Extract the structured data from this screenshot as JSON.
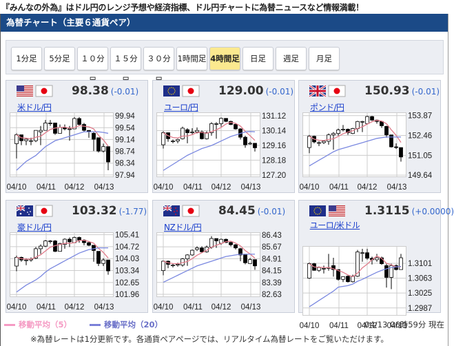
{
  "tagline": "『みんなの外為』はドル円のレンジ予想や経済指標、ドル円チャートに為替ニュースなど情報満載！",
  "header": {
    "title": "為替チャート（主要６通貨ペア）"
  },
  "timeframes": [
    {
      "label": "1分足",
      "active": false
    },
    {
      "label": "5分足",
      "active": false
    },
    {
      "label": "１０分足",
      "active": false
    },
    {
      "label": "１５分足",
      "active": false
    },
    {
      "label": "３０分足",
      "active": false
    },
    {
      "label": "1時間足",
      "active": false
    },
    {
      "label": "4時間足",
      "active": true
    },
    {
      "label": "日足",
      "active": false
    },
    {
      "label": "週足",
      "active": false
    },
    {
      "label": "月足",
      "active": false
    }
  ],
  "colors": {
    "ma5": "#e07b8a",
    "ma20": "#7a88e0",
    "active_button": "#fbe98f",
    "header": "#1b4a87",
    "change": "#3366cc"
  },
  "dates": [
    "04/10",
    "04/11",
    "04/12",
    "04/13"
  ],
  "pairs": [
    {
      "name": "米ドル/円",
      "flags": [
        "us",
        "jp"
      ],
      "price": "98.38",
      "change": "(-0.01)",
      "ylabels": [
        "99.94",
        "99.54",
        "99.14",
        "98.74",
        "98.34",
        "97.94"
      ],
      "ylim": [
        97.89,
        100.06
      ],
      "candles": [
        [
          99.0,
          99.35,
          98.5,
          99.3
        ],
        [
          99.3,
          99.3,
          98.95,
          99.1
        ],
        [
          99.1,
          99.2,
          98.95,
          99.15
        ],
        [
          99.1,
          99.2,
          98.95,
          99.1
        ],
        [
          99.1,
          99.45,
          99.05,
          99.45
        ],
        [
          99.4,
          99.6,
          98.95,
          99.45
        ],
        [
          99.45,
          99.8,
          99.45,
          99.7
        ],
        [
          99.7,
          99.8,
          99.6,
          99.7
        ],
        [
          99.7,
          99.7,
          99.3,
          99.35
        ],
        [
          99.35,
          99.65,
          99.35,
          99.55
        ],
        [
          99.55,
          99.65,
          99.45,
          99.5
        ],
        [
          99.5,
          99.6,
          99.1,
          99.5
        ],
        [
          99.5,
          99.9,
          99.5,
          99.85
        ],
        [
          99.85,
          99.9,
          99.6,
          99.65
        ],
        [
          99.65,
          99.7,
          99.4,
          99.45
        ],
        [
          99.45,
          99.45,
          99.2,
          99.4
        ],
        [
          99.35,
          99.4,
          98.75,
          99.15
        ],
        [
          99.2,
          99.2,
          98.7,
          98.75
        ],
        [
          98.75,
          99.0,
          98.7,
          98.9
        ],
        [
          98.9,
          98.9,
          98.1,
          98.38
        ]
      ],
      "ma20": [
        98.1,
        98.25,
        98.4,
        98.5,
        98.6,
        98.75,
        98.9,
        99.0,
        99.1,
        99.15,
        99.2,
        99.25,
        99.3,
        99.35,
        99.4,
        99.4,
        99.4,
        99.4,
        99.38,
        99.35
      ]
    },
    {
      "name": "ユーロ/円",
      "flags": [
        "eu",
        "jp"
      ],
      "price": "129.00",
      "change": "(-0.01)",
      "ylabels": [
        "131.12",
        "130.14",
        "129.16",
        "128.18",
        "127.20"
      ],
      "ylim": [
        127.1,
        131.35
      ],
      "candles": [
        [
          129.2,
          130.1,
          128.95,
          130.0
        ],
        [
          130.0,
          130.0,
          129.4,
          129.6
        ],
        [
          129.45,
          129.55,
          129.3,
          129.45
        ],
        [
          129.45,
          129.6,
          129.3,
          129.55
        ],
        [
          129.6,
          130.4,
          129.55,
          130.3
        ],
        [
          130.2,
          130.3,
          129.3,
          130.0
        ],
        [
          130.0,
          130.3,
          129.9,
          130.05
        ],
        [
          130.05,
          130.35,
          129.95,
          130.15
        ],
        [
          130.05,
          130.15,
          129.55,
          129.6
        ],
        [
          129.6,
          130.1,
          129.55,
          130.0
        ],
        [
          130.0,
          130.7,
          129.8,
          130.6
        ],
        [
          130.6,
          130.7,
          129.6,
          130.6
        ],
        [
          130.6,
          131.0,
          130.4,
          130.95
        ],
        [
          130.95,
          130.95,
          130.7,
          130.75
        ],
        [
          130.75,
          130.8,
          130.5,
          130.55
        ],
        [
          130.55,
          130.65,
          130.2,
          130.25
        ],
        [
          130.25,
          130.3,
          129.55,
          129.7
        ],
        [
          129.7,
          129.8,
          129.0,
          129.2
        ],
        [
          129.25,
          129.4,
          129.2,
          129.3
        ],
        [
          129.3,
          129.3,
          128.75,
          129.0
        ]
      ],
      "ma20": [
        127.5,
        127.7,
        127.9,
        128.1,
        128.3,
        128.5,
        128.65,
        128.8,
        128.95,
        129.05,
        129.15,
        129.3,
        129.45,
        129.6,
        129.75,
        129.85,
        129.95,
        130.05,
        130.08,
        130.06
      ]
    },
    {
      "name": "ポンド/円",
      "flags": [
        "uk",
        "jp"
      ],
      "price": "150.93",
      "change": "(-0.01)",
      "ylabels": [
        "153.87",
        "152.46",
        "151.05",
        "149.64"
      ],
      "ylim": [
        149.55,
        154.1
      ],
      "candles": [
        [
          151.6,
          152.5,
          151.2,
          152.4
        ],
        [
          152.4,
          152.45,
          151.9,
          152.0
        ],
        [
          151.95,
          152.05,
          151.7,
          151.95
        ],
        [
          151.95,
          152.1,
          151.85,
          152.05
        ],
        [
          152.05,
          152.6,
          151.8,
          152.5
        ],
        [
          152.5,
          152.7,
          151.45,
          152.6
        ],
        [
          152.6,
          152.95,
          152.45,
          152.85
        ],
        [
          152.85,
          153.2,
          152.75,
          152.9
        ],
        [
          152.9,
          152.95,
          152.5,
          152.65
        ],
        [
          152.6,
          153.0,
          152.55,
          152.95
        ],
        [
          152.95,
          153.5,
          152.7,
          153.45
        ],
        [
          153.45,
          153.5,
          152.7,
          153.45
        ],
        [
          153.3,
          153.87,
          153.3,
          153.8
        ],
        [
          153.8,
          153.85,
          153.5,
          153.55
        ],
        [
          153.55,
          153.6,
          153.3,
          153.45
        ],
        [
          153.45,
          153.5,
          153.0,
          153.15
        ],
        [
          153.1,
          153.15,
          152.3,
          152.5
        ],
        [
          152.5,
          152.5,
          151.6,
          151.65
        ],
        [
          151.65,
          151.9,
          151.5,
          151.6
        ],
        [
          151.6,
          151.6,
          150.6,
          150.93
        ]
      ],
      "ma20": [
        150.3,
        150.5,
        150.7,
        150.9,
        151.1,
        151.3,
        151.45,
        151.55,
        151.65,
        151.75,
        151.85,
        151.95,
        152.05,
        152.15,
        152.25,
        152.3,
        152.35,
        152.35,
        152.35,
        152.35
      ]
    },
    {
      "name": "豪ドル/円",
      "flags": [
        "au",
        "jp"
      ],
      "price": "103.32",
      "change": "(-1.77)",
      "ylabels": [
        "105.41",
        "104.72",
        "104.03",
        "103.34",
        "102.65",
        "101.96"
      ],
      "ylim": [
        101.85,
        105.55
      ],
      "candles": [
        [
          103.6,
          104.2,
          103.3,
          104.1
        ],
        [
          104.1,
          104.15,
          103.85,
          103.95
        ],
        [
          103.95,
          104.05,
          103.65,
          103.95
        ],
        [
          103.95,
          104.1,
          103.85,
          104.0
        ],
        [
          104.05,
          104.7,
          104.0,
          104.6
        ],
        [
          104.6,
          104.85,
          104.3,
          104.75
        ],
        [
          104.75,
          105.1,
          104.7,
          105.05
        ],
        [
          105.05,
          105.1,
          104.9,
          105.05
        ],
        [
          105.05,
          105.1,
          104.4,
          104.45
        ],
        [
          104.45,
          104.95,
          104.45,
          104.9
        ],
        [
          104.85,
          105.2,
          104.6,
          105.15
        ],
        [
          105.15,
          105.25,
          104.7,
          105.0
        ],
        [
          104.95,
          105.3,
          104.95,
          105.25
        ],
        [
          105.25,
          105.3,
          104.95,
          105.1
        ],
        [
          105.1,
          105.15,
          104.8,
          104.95
        ],
        [
          104.95,
          105.0,
          104.75,
          104.8
        ],
        [
          104.8,
          104.8,
          103.85,
          104.5
        ],
        [
          104.45,
          104.45,
          103.6,
          103.75
        ],
        [
          103.75,
          104.05,
          103.6,
          103.95
        ],
        [
          103.95,
          103.95,
          103.1,
          103.32
        ]
      ],
      "ma20": [
        102.1,
        102.3,
        102.5,
        102.65,
        102.8,
        103.0,
        103.25,
        103.45,
        103.6,
        103.75,
        103.9,
        104.05,
        104.2,
        104.35,
        104.45,
        104.55,
        104.6,
        104.65,
        104.65,
        104.65
      ]
    },
    {
      "name": "NZドル/円",
      "flags": [
        "nz",
        "jp"
      ],
      "price": "84.45",
      "change": "(-0.01)",
      "ylabels": [
        "86.43",
        "85.67",
        "84.91",
        "84.15",
        "83.39",
        "82.63"
      ],
      "ylim": [
        82.5,
        86.6
      ],
      "candles": [
        [
          84.15,
          84.8,
          83.85,
          84.75
        ],
        [
          84.75,
          84.8,
          84.3,
          84.55
        ],
        [
          84.5,
          84.6,
          84.35,
          84.5
        ],
        [
          84.5,
          84.65,
          84.4,
          84.55
        ],
        [
          84.5,
          84.95,
          84.4,
          84.9
        ],
        [
          84.9,
          85.2,
          84.45,
          85.15
        ],
        [
          85.15,
          85.5,
          85.1,
          85.45
        ],
        [
          85.5,
          85.7,
          85.4,
          85.6
        ],
        [
          85.6,
          85.7,
          85.3,
          85.35
        ],
        [
          85.35,
          85.75,
          85.3,
          85.65
        ],
        [
          85.65,
          86.35,
          85.55,
          86.2
        ],
        [
          86.2,
          86.2,
          85.6,
          86.05
        ],
        [
          85.9,
          86.2,
          85.8,
          86.15
        ],
        [
          86.15,
          86.2,
          85.9,
          85.95
        ],
        [
          85.95,
          86.0,
          85.7,
          85.8
        ],
        [
          85.8,
          85.85,
          85.5,
          85.6
        ],
        [
          85.55,
          85.6,
          84.75,
          85.15
        ],
        [
          85.15,
          85.15,
          84.55,
          84.65
        ],
        [
          84.6,
          84.95,
          84.6,
          84.85
        ],
        [
          84.85,
          84.85,
          84.2,
          84.45
        ]
      ],
      "ma20": [
        83.4,
        83.55,
        83.7,
        83.85,
        84.0,
        84.15,
        84.3,
        84.45,
        84.55,
        84.65,
        84.75,
        84.85,
        84.95,
        85.05,
        85.1,
        85.15,
        85.2,
        85.2,
        85.2,
        85.2
      ]
    },
    {
      "name": "ユーロ/米ドル",
      "flags": [
        "eu",
        "us"
      ],
      "price": "1.3115",
      "change": "(+0.0000)",
      "ylabels": [
        "1.3101",
        "1.3063",
        "1.3025",
        "1.2987"
      ],
      "ylim": [
        1.2969,
        1.3145
      ],
      "candles": [
        [
          1.3063,
          1.3103,
          1.3061,
          1.31
        ],
        [
          1.31,
          1.3102,
          1.3082,
          1.3083
        ],
        [
          1.3083,
          1.3093,
          1.3079,
          1.309
        ],
        [
          1.3088,
          1.3095,
          1.3075,
          1.3088
        ],
        [
          1.3088,
          1.3125,
          1.3082,
          1.309
        ],
        [
          1.3095,
          1.3115,
          1.3067,
          1.3085
        ],
        [
          1.3085,
          1.3085,
          1.3057,
          1.306
        ],
        [
          1.306,
          1.3068,
          1.3053,
          1.3067
        ],
        [
          1.3068,
          1.307,
          1.3052,
          1.3054
        ],
        [
          1.3054,
          1.3072,
          1.3052,
          1.3068
        ],
        [
          1.3068,
          1.3135,
          1.3066,
          1.313
        ],
        [
          1.3128,
          1.3138,
          1.3105,
          1.3128
        ],
        [
          1.3128,
          1.3138,
          1.311,
          1.3114
        ],
        [
          1.3114,
          1.3118,
          1.3098,
          1.311
        ],
        [
          1.311,
          1.3125,
          1.3105,
          1.3115
        ],
        [
          1.3115,
          1.3118,
          1.3097,
          1.31
        ],
        [
          1.3095,
          1.31,
          1.3039,
          1.3065
        ],
        [
          1.3065,
          1.31,
          1.3035,
          1.3095
        ],
        [
          1.3095,
          1.3098,
          1.3083,
          1.3085
        ],
        [
          1.3085,
          1.3125,
          1.3085,
          1.3115
        ]
      ],
      "ma20": [
        1.299,
        1.2998,
        1.3006,
        1.3014,
        1.3022,
        1.303,
        1.304,
        1.3042,
        1.3044,
        1.3048,
        1.3055,
        1.306,
        1.3066,
        1.3072,
        1.3078,
        1.3083,
        1.3087,
        1.309,
        1.3092,
        1.3093
      ]
    }
  ],
  "legend": {
    "ma5": "移動平均（5）",
    "ma20": "移動平均（20）"
  },
  "timestamp": "04/13 06時59分 現在",
  "note": "※為替レートは1分更新です。各通貨ペアページでは、リアルタイム為替レートをご覧いただけます。"
}
